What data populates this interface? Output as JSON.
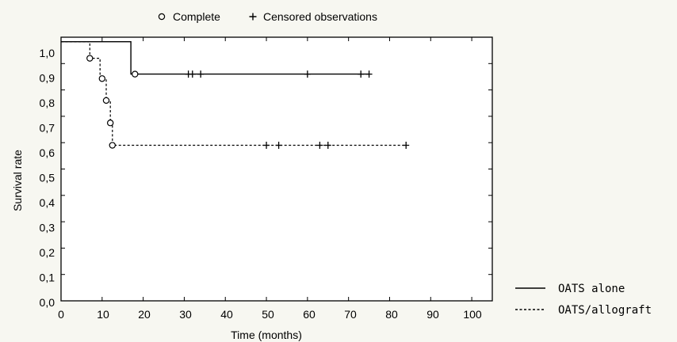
{
  "chart_data": {
    "type": "line",
    "subtype": "kaplan-meier",
    "xlabel": "Time (months)",
    "ylabel": "Survival rate",
    "xlim": [
      0,
      105
    ],
    "ylim": [
      0,
      1.0
    ],
    "x_ticks": [
      "0",
      "10",
      "20",
      "30",
      "40",
      "50",
      "60",
      "70",
      "80",
      "90",
      "100"
    ],
    "y_ticks": [
      "0,0",
      "0,1",
      "0,2",
      "0,3",
      "0,4",
      "0,5",
      "0,6",
      "0,7",
      "0,8",
      "0,9",
      "1,0"
    ],
    "grid": false,
    "marker_legend": [
      {
        "symbol": "circle",
        "label": "Complete"
      },
      {
        "symbol": "plus",
        "label": "Censored observations"
      }
    ],
    "series_legend_position": "right",
    "series": [
      {
        "name": "OATS alone",
        "line_style": "solid",
        "steps": [
          [
            0,
            0.983
          ],
          [
            17,
            0.983
          ],
          [
            17,
            0.86
          ],
          [
            75,
            0.86
          ]
        ],
        "complete": [
          [
            18,
            0.86
          ]
        ],
        "censored": [
          [
            31,
            0.86
          ],
          [
            32,
            0.86
          ],
          [
            34,
            0.86
          ],
          [
            60,
            0.86
          ],
          [
            73,
            0.86
          ],
          [
            75,
            0.86
          ]
        ]
      },
      {
        "name": "OATS/allograft",
        "line_style": "dashed",
        "steps": [
          [
            0,
            0.983
          ],
          [
            7,
            0.983
          ],
          [
            7,
            0.92
          ],
          [
            9.5,
            0.92
          ],
          [
            9.5,
            0.843
          ],
          [
            11,
            0.843
          ],
          [
            11,
            0.76
          ],
          [
            12,
            0.76
          ],
          [
            12,
            0.675
          ],
          [
            12.5,
            0.675
          ],
          [
            12.5,
            0.59
          ],
          [
            84,
            0.59
          ]
        ],
        "complete": [
          [
            7,
            0.92
          ],
          [
            10,
            0.843
          ],
          [
            11,
            0.76
          ],
          [
            12,
            0.675
          ],
          [
            12.5,
            0.59
          ]
        ],
        "censored": [
          [
            50,
            0.59
          ],
          [
            53,
            0.59
          ],
          [
            63,
            0.59
          ],
          [
            65,
            0.59
          ],
          [
            84,
            0.59
          ]
        ]
      }
    ]
  }
}
